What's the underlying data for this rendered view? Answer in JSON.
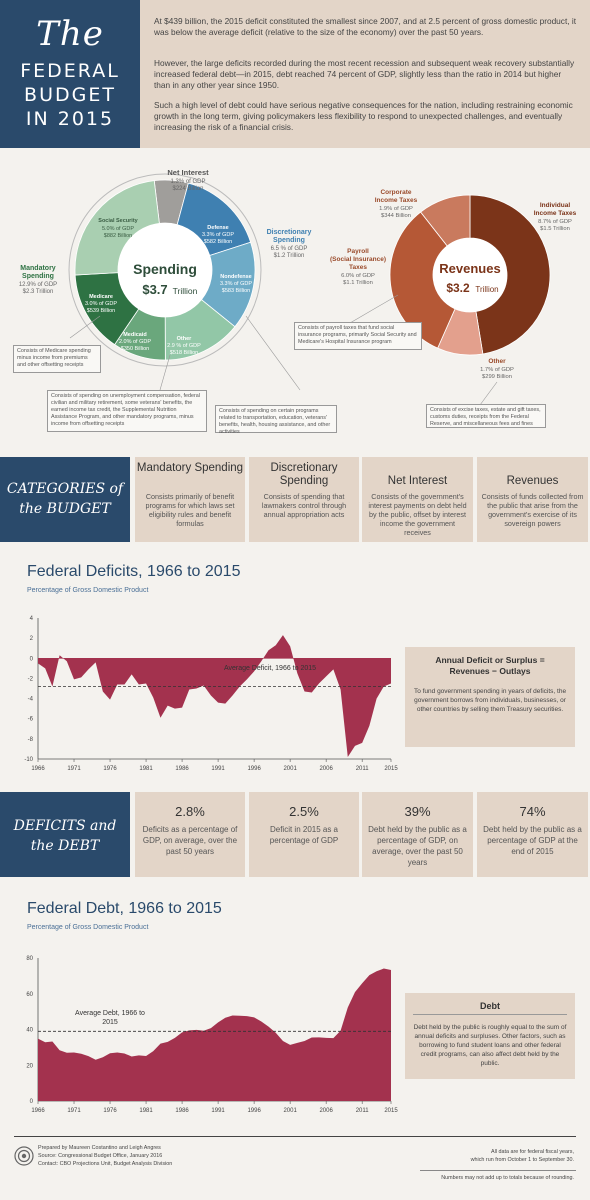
{
  "header": {
    "title_the": "The",
    "title_lines": [
      "FEDERAL",
      "BUDGET",
      "IN 2015"
    ],
    "paragraphs": [
      "At $439 billion, the 2015 deficit constituted the smallest since 2007, and at 2.5 percent of gross domestic product, it was below the average deficit (relative to the size of the economy) over the past 50 years.",
      "However, the large deficits recorded during the most recent recession and subsequent weak recovery substantially increased federal debt—in 2015, debt reached 74 percent of GDP, slightly less than the ratio in 2014 but higher than in any other year since 1950.",
      "Such a high level of debt could have serious negative consequences for the nation, including restraining economic growth in the long term, giving policymakers less flexibility to respond to unexpected challenges, and eventually increasing the risk of a financial crisis."
    ]
  },
  "spending": {
    "center_label": "Spending",
    "center_amount": "$3.7",
    "center_unit": "Trillion",
    "colors": {
      "net_interest": "#a09e9b",
      "defense": "#3f80b1",
      "nondefense": "#6eabc7",
      "other": "#92c7a7",
      "medicaid": "#6aa77c",
      "medicare": "#2e7243",
      "social_security": "#a9cfb1"
    },
    "slices": [
      {
        "id": "net_interest",
        "label": "Net Interest",
        "pct": "1.3% of GDP",
        "amount": "$224 Billion",
        "value": 224
      },
      {
        "id": "defense",
        "label": "Defense",
        "pct": "3.3% of GDP",
        "amount": "$582 Billion",
        "value": 582
      },
      {
        "id": "nondefense",
        "label": "Nondefense",
        "pct": "3.3% of GDP",
        "amount": "$583 Billion",
        "value": 583
      },
      {
        "id": "other",
        "label": "Other",
        "pct": "2.9 % of GDP",
        "amount": "$518 Billion",
        "value": 518
      },
      {
        "id": "medicaid",
        "label": "Medicaid",
        "pct": "2.0% of GDP",
        "amount": "$350 Billion",
        "value": 350
      },
      {
        "id": "medicare",
        "label": "Medicare",
        "pct": "3.0% of GDP",
        "amount": "$539 Billion",
        "value": 539
      },
      {
        "id": "social_security",
        "label": "Social Security",
        "pct": "5.0% of GDP",
        "amount": "$882 Billion",
        "value": 882
      }
    ],
    "groups": {
      "net_interest": {
        "label": "Net Interest",
        "pct": "1.3% of GDP",
        "amount": "$224 Billion"
      },
      "discretionary": {
        "label": "Discretionary Spending",
        "pct": "6.5 % of GDP",
        "amount": "$1.2 Trillion"
      },
      "mandatory": {
        "label": "Mandatory Spending",
        "pct": "12.9% of GDP",
        "amount": "$2.3 Trillion"
      }
    },
    "callouts": {
      "medicare": "Consists of Medicare spending minus income from premiums and other offsetting receipts",
      "other": "Consists of spending on unemployment compensation, federal civilian and military retirement, some veterans' benefits, the earned income tax credit, the Supplemental Nutrition Assistance Program, and other mandatory programs, minus income from offsetting receipts",
      "nondefense": "Consists of spending on certain programs related to transportation, education, veterans' benefits, health, housing assistance, and other activities"
    }
  },
  "revenues": {
    "center_label": "Revenues",
    "center_amount": "$3.2",
    "center_unit": "Trillion",
    "colors": {
      "individual": "#7b3419",
      "other": "#e3a08d",
      "payroll": "#b55836",
      "corporate": "#c97a5e"
    },
    "slices": [
      {
        "id": "individual",
        "label": "Individual Income Taxes",
        "pct": "8.7% of GDP",
        "amount": "$1.5 Trillion",
        "value": 1541
      },
      {
        "id": "other",
        "label": "Other",
        "pct": "1.7% of GDP",
        "amount": "$299 Billion",
        "value": 299
      },
      {
        "id": "payroll",
        "label": "Payroll (Social Insurance) Taxes",
        "pct": "6.0% of GDP",
        "amount": "$1.1 Trillion",
        "value": 1065
      },
      {
        "id": "corporate",
        "label": "Corporate Income Taxes",
        "pct": "1.9% of GDP",
        "amount": "$344 Billion",
        "value": 344
      }
    ],
    "callouts": {
      "payroll": "Consists of payroll taxes that fund social insurance programs, primarily Social Security and Medicare's Hospital Insurance program",
      "other": "Consists of excise taxes, estate and gift taxes, customs duties, receipts from the Federal Reserve, and miscellaneous fees and fines"
    }
  },
  "categories": {
    "heading_lines": [
      "CATEGORIES of",
      "the BUDGET"
    ],
    "cards": [
      {
        "title": "Mandatory Spending",
        "body": "Consists primarily of benefit programs for which laws set eligibility rules and benefit formulas"
      },
      {
        "title": "Discretionary Spending",
        "body": "Consists of spending that lawmakers control through annual appropriation acts"
      },
      {
        "title": "Net Interest",
        "body": "Consists of the government's interest payments on debt held by the public, offset by interest income the government receives"
      },
      {
        "title": "Revenues",
        "body": "Consists of funds collected from the public that arise from the government's exercise of its sovereign powers"
      }
    ]
  },
  "deficits_chart": {
    "title": "Federal Deficits, 1966 to 2015",
    "subtitle": "Percentage of Gross Domestic Product",
    "avg_label": "Average Deficit, 1966 to 2015",
    "info_title": "Annual Deficit or Surplus = Revenues − Outlays",
    "info_body": "To fund government spending in years of deficits, the government borrows from individuals, businesses, or other countries by selling them Treasury securities."
  },
  "deficits_stats": {
    "heading_lines": [
      "DEFICITS and",
      "the DEBT"
    ],
    "cards": [
      {
        "value": "2.8%",
        "body": "Deficits as a percentage of GDP, on average, over the past 50 years"
      },
      {
        "value": "2.5%",
        "body": "Deficit in 2015 as a percentage of GDP"
      },
      {
        "value": "39%",
        "body": "Debt held by the public as a percentage of GDP, on average, over the past 50 years"
      },
      {
        "value": "74%",
        "body": "Debt held by the public as a percentage of GDP at the end of 2015"
      }
    ]
  },
  "debt_chart": {
    "title": "Federal Debt, 1966 to 2015",
    "subtitle": "Percentage of Gross Domestic Product",
    "avg_label": "Average Debt, 1966 to 2015",
    "info_title": "Debt",
    "info_body": "Debt held by the public is roughly equal to the sum of annual deficits and surpluses. Other factors, such as borrowing to fund student loans and other federal credit programs, can also affect debt held by the public."
  },
  "footer": {
    "left_lines": [
      "Prepared by Maureen Costantino and Leigh Angres",
      "Source: Congressional Budget Office, January 2016",
      "Contact: CBO Projections Unit, Budget Analysis Division"
    ],
    "right_lines": [
      "All data are for federal fiscal years,",
      "which run from October 1 to September 30."
    ],
    "note": "Numbers may not add up to totals because of rounding."
  },
  "chart_data": [
    {
      "type": "area",
      "title": "Federal Deficits, 1966 to 2015",
      "subtitle": "Percentage of Gross Domestic Product",
      "x_ticks": [
        1966,
        1971,
        1976,
        1981,
        1986,
        1991,
        1996,
        2001,
        2006,
        2011,
        2015
      ],
      "y_ticks": [
        4,
        2,
        0,
        -2,
        -4,
        -6,
        -8,
        -10
      ],
      "ylim": [
        -10,
        4
      ],
      "average": -2.8,
      "x": [
        1966,
        1967,
        1968,
        1969,
        1970,
        1971,
        1972,
        1973,
        1974,
        1975,
        1976,
        1977,
        1978,
        1979,
        1980,
        1981,
        1982,
        1983,
        1984,
        1985,
        1986,
        1987,
        1988,
        1989,
        1990,
        1991,
        1992,
        1993,
        1994,
        1995,
        1996,
        1997,
        1998,
        1999,
        2000,
        2001,
        2002,
        2003,
        2004,
        2005,
        2006,
        2007,
        2008,
        2009,
        2010,
        2011,
        2012,
        2013,
        2014,
        2015
      ],
      "values": [
        -0.5,
        -1.0,
        -2.8,
        0.3,
        -0.3,
        -2.1,
        -1.9,
        -1.1,
        -0.4,
        -3.3,
        -4.1,
        -2.6,
        -2.6,
        -1.6,
        -2.6,
        -2.5,
        -3.9,
        -5.9,
        -4.7,
        -5.0,
        -4.9,
        -3.1,
        -3.0,
        -2.7,
        -3.7,
        -4.4,
        -4.5,
        -3.7,
        -2.8,
        -2.1,
        -1.3,
        -0.3,
        0.8,
        1.3,
        2.3,
        1.2,
        -1.5,
        -3.3,
        -3.4,
        -2.5,
        -1.8,
        -1.1,
        -3.1,
        -9.8,
        -8.7,
        -8.4,
        -6.7,
        -4.0,
        -2.8,
        -2.5
      ]
    },
    {
      "type": "area",
      "title": "Federal Debt, 1966 to 2015",
      "subtitle": "Percentage of Gross Domestic Product",
      "x_ticks": [
        1966,
        1971,
        1976,
        1981,
        1986,
        1991,
        1996,
        2001,
        2006,
        2011,
        2015
      ],
      "y_ticks": [
        80,
        60,
        40,
        20,
        0
      ],
      "ylim": [
        0,
        80
      ],
      "average": 39,
      "x": [
        1966,
        1967,
        1968,
        1969,
        1970,
        1971,
        1972,
        1973,
        1974,
        1975,
        1976,
        1977,
        1978,
        1979,
        1980,
        1981,
        1982,
        1983,
        1984,
        1985,
        1986,
        1987,
        1988,
        1989,
        1990,
        1991,
        1992,
        1993,
        1994,
        1995,
        1996,
        1997,
        1998,
        1999,
        2000,
        2001,
        2002,
        2003,
        2004,
        2005,
        2006,
        2007,
        2008,
        2009,
        2010,
        2011,
        2012,
        2013,
        2014,
        2015
      ],
      "values": [
        34.9,
        32.9,
        33.3,
        28.4,
        27.0,
        27.1,
        26.4,
        25.1,
        23.1,
        24.5,
        26.7,
        27.1,
        26.6,
        24.9,
        25.5,
        25.2,
        27.9,
        32.1,
        33.1,
        35.3,
        38.4,
        39.5,
        39.8,
        39.3,
        40.8,
        44.0,
        46.6,
        47.8,
        47.7,
        47.5,
        46.8,
        44.5,
        41.6,
        38.2,
        33.6,
        31.4,
        32.5,
        33.6,
        35.5,
        35.6,
        35.3,
        35.2,
        39.3,
        52.3,
        60.9,
        65.9,
        70.4,
        72.6,
        74.1,
        73.3
      ]
    },
    {
      "type": "pie",
      "title": "Spending",
      "categories": [
        "Net Interest",
        "Defense",
        "Nondefense",
        "Other",
        "Medicaid",
        "Medicare",
        "Social Security"
      ],
      "values": [
        224,
        582,
        583,
        518,
        350,
        539,
        882
      ]
    },
    {
      "type": "pie",
      "title": "Revenues",
      "categories": [
        "Individual Income Taxes",
        "Other",
        "Payroll (Social Insurance) Taxes",
        "Corporate Income Taxes"
      ],
      "values": [
        1541,
        299,
        1065,
        344
      ]
    }
  ]
}
